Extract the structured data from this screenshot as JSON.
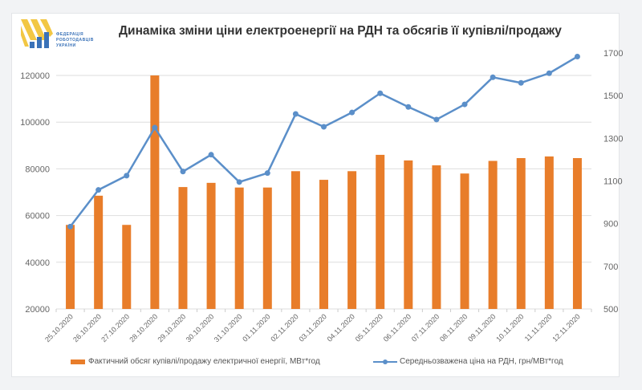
{
  "logo": {
    "lines": [
      "ФЕДЕРАЦІЯ",
      "РОБОТОДАВЦІВ",
      "УКРАЇНИ"
    ]
  },
  "chart_data": {
    "type": "bar+line",
    "title": "Динаміка зміни ціни електроенергії на РДН та обсягів її купівлі/продажу",
    "categories": [
      "25.10.2020",
      "26.10.2020",
      "27.10.2020",
      "28.10.2020",
      "29.10.2020",
      "30.10.2020",
      "31.10.2020",
      "01.11.2020",
      "02.11.2020",
      "03.11.2020",
      "04.11.2020",
      "05.11.2020",
      "06.11.2020",
      "07.11.2020",
      "08.11.2020",
      "09.11.2020",
      "10.11.2020",
      "11.11.2020",
      "12.11.2020"
    ],
    "series": [
      {
        "name": "Фактичний обсяг купівлі/продажу електричної енергії, МВт*год",
        "type": "bar",
        "axis": "left",
        "color": "#e87d2a",
        "values": [
          56000,
          68500,
          56000,
          120000,
          72200,
          74000,
          72000,
          72000,
          79000,
          75300,
          79000,
          86000,
          83600,
          81500,
          78000,
          83400,
          84600,
          85300,
          84600
        ]
      },
      {
        "name": "Середньозважена ціна на РДН, грн/МВт*год",
        "type": "line",
        "axis": "right",
        "color": "#5b8fc9",
        "values": [
          886,
          1058,
          1125,
          1350,
          1144,
          1223,
          1095,
          1137,
          1414,
          1354,
          1421,
          1511,
          1447,
          1388,
          1459,
          1586,
          1560,
          1605,
          1683
        ]
      }
    ],
    "left_axis": {
      "range": [
        20000,
        120000
      ],
      "ticks": [
        "20000",
        "40000",
        "60000",
        "80000",
        "100000",
        "120000"
      ]
    },
    "right_axis": {
      "range": [
        500,
        1700
      ],
      "ticks": [
        "500",
        "700",
        "900",
        "1100",
        "1300",
        "1500",
        "1700"
      ]
    },
    "grid": true,
    "legend": "bottom"
  }
}
